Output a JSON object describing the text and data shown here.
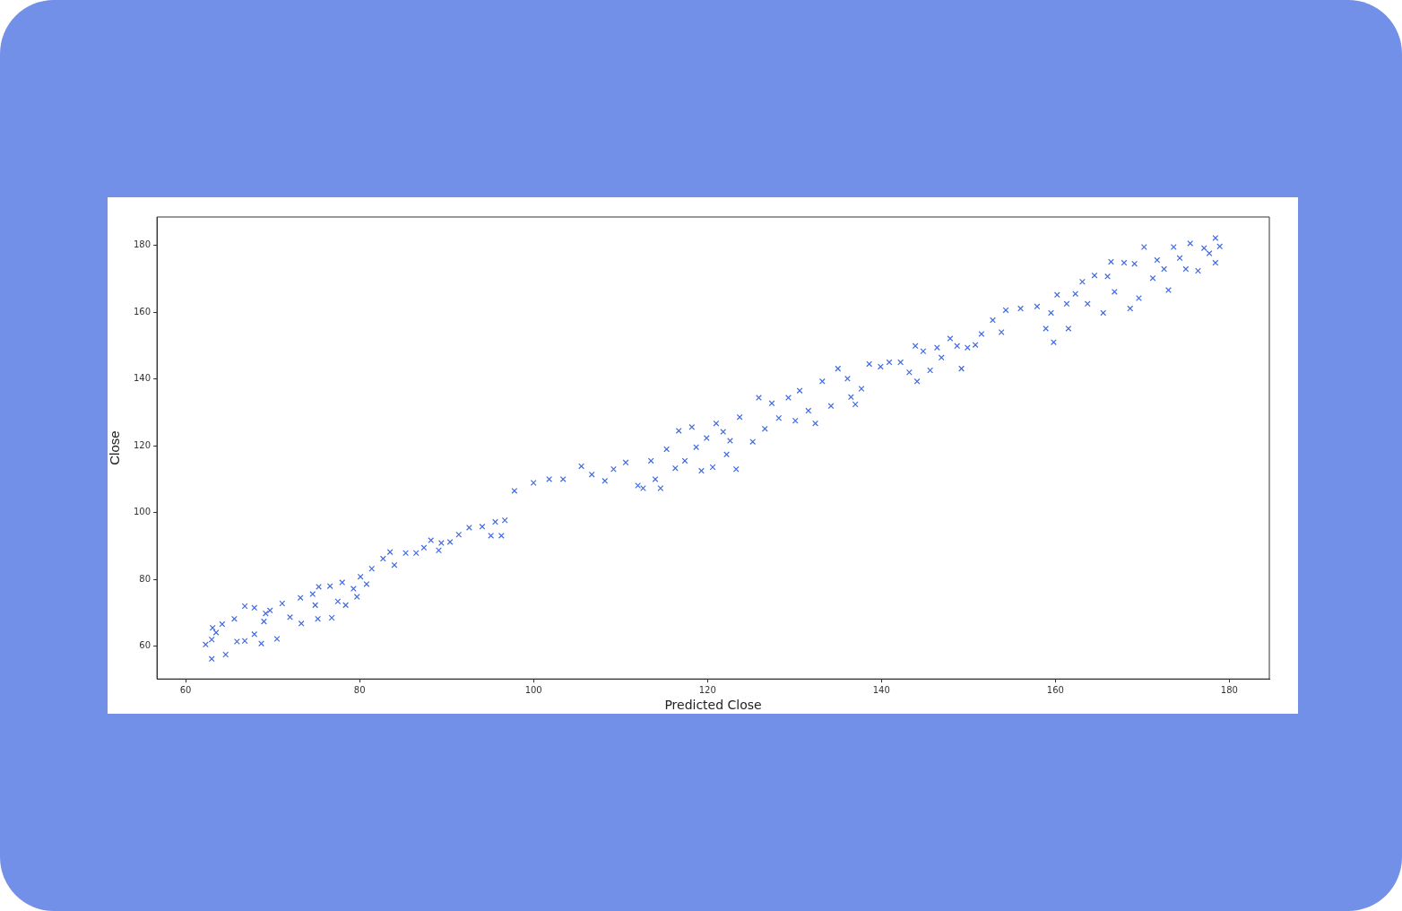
{
  "chart_data": {
    "type": "scatter",
    "xlabel": "Predicted Close",
    "ylabel": "Close",
    "xlim": [
      56.7,
      184.6
    ],
    "ylim": [
      50.2,
      188.5
    ],
    "xticks": [
      60,
      80,
      100,
      120,
      140,
      160,
      180
    ],
    "yticks": [
      60,
      80,
      100,
      120,
      140,
      160,
      180
    ],
    "grid": false,
    "legend": false,
    "marker": "cross",
    "series": [
      {
        "color": "#4169e1",
        "x": [
          62.3,
          63,
          63.1,
          63,
          63.5,
          64.6,
          64.2,
          65.6,
          65.9,
          66.8,
          66.8,
          67.9,
          67.9,
          68.7,
          69,
          69.2,
          69.7,
          70.5,
          71.1,
          72,
          73.2,
          73.3,
          74.6,
          74.9,
          75.2,
          75.3,
          76.8,
          76.6,
          77.5,
          78,
          78.4,
          79.3,
          79.7,
          80.1,
          80.8,
          81.4,
          82.7,
          83.5,
          84,
          85.3,
          86.5,
          87.4,
          88.2,
          89.1,
          89.4,
          90.4,
          91.4,
          92.6,
          94.1,
          95.1,
          95.6,
          96.3,
          96.7,
          97.8,
          100,
          101.8,
          103.4,
          105.5,
          106.7,
          108.2,
          109.2,
          110.6,
          112,
          112.6,
          113.5,
          114,
          114.6,
          115.3,
          116.3,
          116.7,
          117.4,
          118.2,
          118.7,
          119.3,
          119.9,
          120.6,
          121,
          121.8,
          122.2,
          122.6,
          123.3,
          123.7,
          125.2,
          125.9,
          126.6,
          127.4,
          128.2,
          129.3,
          130.1,
          130.6,
          131.6,
          132.4,
          133.2,
          134.2,
          135,
          136.1,
          136.5,
          137,
          137.7,
          138.6,
          139.9,
          140.9,
          142.2,
          143.2,
          143.9,
          144.1,
          144.8,
          145.6,
          146.4,
          146.9,
          147.9,
          148.7,
          149.2,
          149.9,
          150.8,
          151.5,
          152.8,
          153.8,
          154.3,
          156,
          157.9,
          158.9,
          159.5,
          159.8,
          160.2,
          161.3,
          161.5,
          162.3,
          163.1,
          163.7,
          164.5,
          165.5,
          166,
          166.4,
          166.8,
          167.9,
          168.6,
          169.1,
          169.6,
          170.2,
          171.2,
          171.7,
          172.5,
          173,
          173.6,
          174.3,
          175,
          175.5,
          176.4,
          177.1,
          177.7,
          178.4,
          178.4,
          178.9
        ],
        "values": [
          60.5,
          62,
          65.5,
          56.2,
          64.1,
          57.5,
          66.6,
          68.2,
          61.4,
          61.6,
          72,
          63.6,
          71.5,
          60.8,
          67.4,
          69.8,
          70.7,
          62.2,
          72.8,
          68.7,
          74.5,
          66.8,
          75.6,
          72.3,
          68.2,
          77.8,
          68.5,
          78,
          73.4,
          79.1,
          72.3,
          77.2,
          74.8,
          80.8,
          78.6,
          83.2,
          86.2,
          88.2,
          84.3,
          87.9,
          87.9,
          89.5,
          91.7,
          88.7,
          90.9,
          91.2,
          93.4,
          95.5,
          95.8,
          93.1,
          97.2,
          93.1,
          97.7,
          106.5,
          108.9,
          110,
          110,
          113.9,
          111.4,
          109.5,
          113,
          115,
          108.1,
          107.3,
          115.5,
          110,
          107.3,
          119,
          113.3,
          124.5,
          115.5,
          125.6,
          119.6,
          112.5,
          122.3,
          113.6,
          126.7,
          124.2,
          117.4,
          121.5,
          113,
          128.6,
          121.2,
          134.4,
          125.1,
          132.7,
          128.3,
          134.4,
          127.5,
          136.5,
          130.5,
          126.7,
          139.3,
          131.9,
          143.1,
          140.1,
          134.6,
          132.4,
          137.1,
          144.5,
          143.7,
          145,
          145,
          142,
          149.9,
          139.3,
          148.3,
          142.6,
          149.4,
          146.4,
          152.1,
          149.9,
          143.1,
          149.4,
          150.2,
          153.5,
          157.6,
          154,
          160.6,
          161.1,
          161.7,
          155.1,
          159.8,
          151,
          165.2,
          162.5,
          155.1,
          165.5,
          169.1,
          162.5,
          171,
          159.8,
          170.7,
          175.1,
          166.1,
          174.8,
          161.1,
          174.5,
          164.2,
          179.5,
          170.2,
          175.6,
          172.9,
          166.6,
          179.5,
          176.2,
          172.9,
          180.6,
          172.4,
          179.2,
          177.6,
          182.2,
          174.8,
          179.7
        ]
      }
    ]
  }
}
